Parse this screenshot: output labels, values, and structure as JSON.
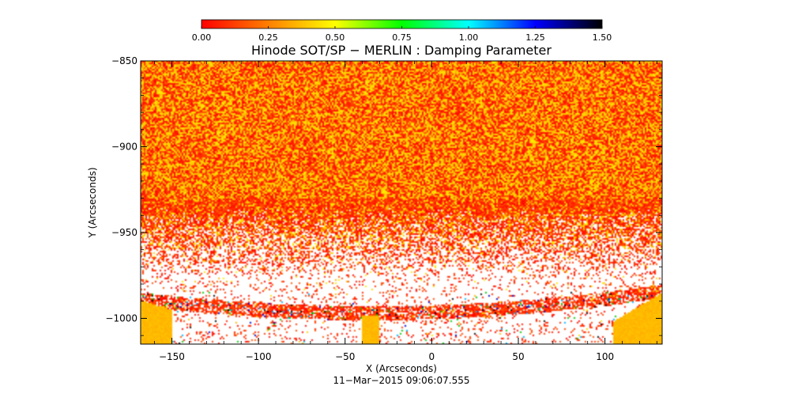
{
  "chart_data": {
    "type": "heatmap",
    "title": "Hinode SOT/SP − MERLIN : Damping Parameter",
    "xlabel": "X (Arcseconds)",
    "ylabel": "Y (Arcseconds)",
    "timestamp": "11−Mar−2015 09:06:07.555",
    "xlim": [
      -168,
      133
    ],
    "ylim": [
      -1015,
      -850
    ],
    "x_ticks": [
      -150,
      -100,
      -50,
      0,
      50,
      100
    ],
    "x_tick_labels": [
      "−150",
      "−100",
      "−50",
      "0",
      "50",
      "100"
    ],
    "y_ticks": [
      -850,
      -900,
      -950,
      -1000
    ],
    "y_tick_labels": [
      "−850",
      "−900",
      "−950",
      "−1000"
    ],
    "colorbar": {
      "range": [
        0,
        1.5
      ],
      "ticks": [
        0,
        0.25,
        0.5,
        0.75,
        1.0,
        1.25,
        1.5
      ],
      "tick_labels": [
        "0.00",
        "0.25",
        "0.50",
        "0.75",
        "1.00",
        "1.25",
        "1.50"
      ],
      "colors": [
        "#ff0000",
        "#ff7f00",
        "#ffff00",
        "#00ff00",
        "#00ffff",
        "#0000ff",
        "#000000"
      ],
      "placement": "top"
    },
    "field_description_colors": {
      "dominant": "#ff3000",
      "secondary": "#ffc000",
      "saturated_fill": "#ffb000",
      "background": "#ffffff"
    },
    "grid": false
  }
}
